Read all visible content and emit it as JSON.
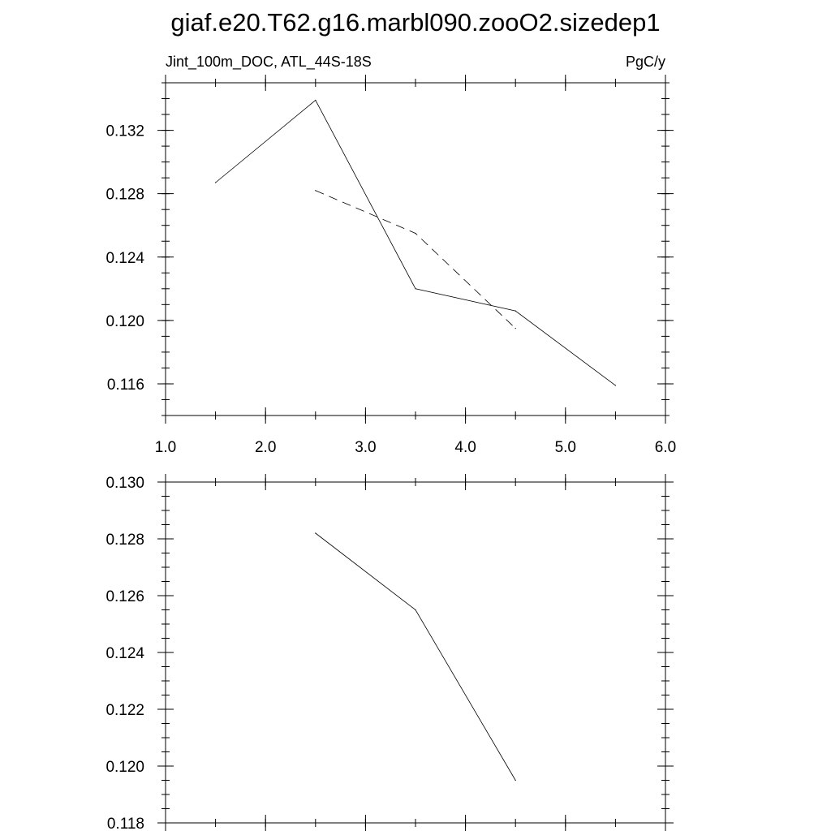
{
  "title": "giaf.e20.T62.g16.marbl090.zooO2.sizedep1",
  "chart_data": [
    {
      "type": "line",
      "subtitle_left": "Jint_100m_DOC, ATL_44S-18S",
      "subtitle_right": "PgC/y",
      "xlim": [
        1.0,
        6.0
      ],
      "ylim": [
        0.114,
        0.135
      ],
      "x_ticks": [
        1.0,
        2.0,
        3.0,
        4.0,
        5.0,
        6.0
      ],
      "x_tick_labels": [
        "1.0",
        "2.0",
        "3.0",
        "4.0",
        "5.0",
        "6.0"
      ],
      "x_minor_step": 0.5,
      "y_ticks": [
        0.116,
        0.12,
        0.124,
        0.128,
        0.132
      ],
      "y_tick_labels": [
        "0.116",
        "0.120",
        "0.124",
        "0.128",
        "0.132"
      ],
      "y_minor_step": 0.001,
      "grid": false,
      "series": [
        {
          "style": "solid",
          "x": [
            1.5,
            2.5,
            3.5,
            4.5,
            5.5
          ],
          "values": [
            0.1287,
            0.1339,
            0.122,
            0.1206,
            0.1159
          ]
        },
        {
          "style": "dashed",
          "x": [
            2.5,
            3.5,
            4.5
          ],
          "values": [
            0.1282,
            0.1255,
            0.1195
          ]
        }
      ]
    },
    {
      "type": "line",
      "xlim": [
        1.0,
        6.0
      ],
      "ylim": [
        0.118,
        0.13
      ],
      "x_ticks": [
        1.0,
        2.0,
        3.0,
        4.0,
        5.0,
        6.0
      ],
      "x_minor_step": 0.5,
      "y_ticks": [
        0.118,
        0.12,
        0.122,
        0.124,
        0.126,
        0.128,
        0.13
      ],
      "y_tick_labels": [
        "0.118",
        "0.120",
        "0.122",
        "0.124",
        "0.126",
        "0.128",
        "0.130"
      ],
      "y_minor_step": 0.0005,
      "grid": false,
      "series": [
        {
          "style": "solid",
          "x": [
            2.5,
            3.5,
            4.5
          ],
          "values": [
            0.1282,
            0.1255,
            0.1195
          ]
        }
      ]
    }
  ]
}
